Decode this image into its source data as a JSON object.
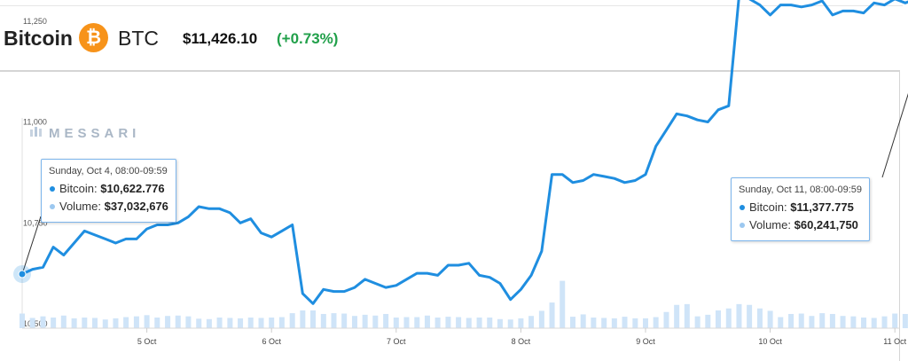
{
  "header": {
    "coin_name": "Bitcoin",
    "coin_logo_glyph": "₿",
    "coin_logo_color": "#f7931a",
    "coin_symbol": "BTC",
    "price": "$11,426.10",
    "change": "(+0.73%)",
    "change_color": "#21a04a"
  },
  "watermark": "MESSARI",
  "tooltip_left": {
    "date": "Sunday, Oct 4, 08:00-09:59",
    "price_label": "Bitcoin:",
    "price_value": "$10,622.776",
    "volume_label": "Volume:",
    "volume_value": "$37,032,676"
  },
  "tooltip_right": {
    "date": "Sunday, Oct 11, 08:00-09:59",
    "price_label": "Bitcoin:",
    "price_value": "$11,377.775",
    "volume_label": "Volume:",
    "volume_value": "$60,241,750"
  },
  "chart_data": {
    "type": "line",
    "title": "",
    "xlabel": "",
    "ylabel": "",
    "x_start_day": 4,
    "x_ticks": [
      "5 Oct",
      "6 Oct",
      "7 Oct",
      "8 Oct",
      "9 Oct",
      "10 Oct",
      "11 Oct"
    ],
    "y_ticks": [
      "10,500",
      "10,750",
      "11,000",
      "11,250"
    ],
    "ylim": [
      10500,
      11350
    ],
    "grid": false,
    "line_color": "#1f8ee0",
    "volume_color": "#cfe4f8",
    "series": [
      {
        "name": "Bitcoin",
        "x_days": [
          4.0,
          4.083,
          4.167,
          4.25,
          4.333,
          4.417,
          4.5,
          4.583,
          4.667,
          4.75,
          4.833,
          4.917,
          5.0,
          5.083,
          5.167,
          5.25,
          5.333,
          5.417,
          5.5,
          5.583,
          5.667,
          5.75,
          5.833,
          5.917,
          6.0,
          6.083,
          6.167,
          6.25,
          6.333,
          6.417,
          6.5,
          6.583,
          6.667,
          6.75,
          6.833,
          6.917,
          7.0,
          7.083,
          7.167,
          7.25,
          7.333,
          7.417,
          7.5,
          7.583,
          7.667,
          7.75,
          7.833,
          7.917,
          8.0,
          8.083,
          8.167,
          8.25,
          8.333,
          8.417,
          8.5,
          8.583,
          8.667,
          8.75,
          8.833,
          8.917,
          9.0,
          9.083,
          9.167,
          9.25,
          9.333,
          9.417,
          9.5,
          9.583,
          9.667,
          9.75,
          9.833,
          9.917,
          10.0,
          10.083,
          10.167,
          10.25,
          10.333,
          10.417,
          10.5,
          10.583,
          10.667,
          10.75,
          10.833,
          10.917,
          11.0,
          11.083,
          11.167,
          11.25,
          11.333,
          11.417
        ],
        "values": [
          10623,
          10635,
          10640,
          10690,
          10670,
          10700,
          10730,
          10720,
          10710,
          10700,
          10710,
          10710,
          10735,
          10745,
          10745,
          10750,
          10765,
          10790,
          10785,
          10785,
          10775,
          10750,
          10760,
          10725,
          10715,
          10730,
          10745,
          10575,
          10550,
          10585,
          10580,
          10580,
          10590,
          10610,
          10600,
          10590,
          10595,
          10610,
          10625,
          10625,
          10620,
          10645,
          10645,
          10650,
          10620,
          10615,
          10600,
          10560,
          10585,
          10620,
          10680,
          10870,
          10870,
          10850,
          10855,
          10870,
          10865,
          10860,
          10850,
          10855,
          10870,
          10940,
          10980,
          11020,
          11015,
          11005,
          11000,
          11030,
          11040,
          11310,
          11305,
          11290,
          11265,
          11290,
          11290,
          11285,
          11290,
          11300,
          11265,
          11275,
          11275,
          11270,
          11295,
          11290,
          11305,
          11295,
          11305,
          11300,
          11310,
          11378
        ]
      },
      {
        "name": "Volume",
        "x_days": [
          4.0,
          4.083,
          4.167,
          4.25,
          4.333,
          4.417,
          4.5,
          4.583,
          4.667,
          4.75,
          4.833,
          4.917,
          5.0,
          5.083,
          5.167,
          5.25,
          5.333,
          5.417,
          5.5,
          5.583,
          5.667,
          5.75,
          5.833,
          5.917,
          6.0,
          6.083,
          6.167,
          6.25,
          6.333,
          6.417,
          6.5,
          6.583,
          6.667,
          6.75,
          6.833,
          6.917,
          7.0,
          7.083,
          7.167,
          7.25,
          7.333,
          7.417,
          7.5,
          7.583,
          7.667,
          7.75,
          7.833,
          7.917,
          8.0,
          8.083,
          8.167,
          8.25,
          8.333,
          8.417,
          8.5,
          8.583,
          8.667,
          8.75,
          8.833,
          8.917,
          9.0,
          9.083,
          9.167,
          9.25,
          9.333,
          9.417,
          9.5,
          9.583,
          9.667,
          9.75,
          9.833,
          9.917,
          10.0,
          10.083,
          10.167,
          10.25,
          10.333,
          10.417,
          10.5,
          10.583,
          10.667,
          10.75,
          10.833,
          10.917,
          11.0,
          11.083,
          11.167,
          11.25,
          11.333,
          11.417
        ],
        "values": [
          37,
          26,
          30,
          27,
          32,
          25,
          27,
          26,
          22,
          25,
          28,
          30,
          33,
          27,
          31,
          32,
          30,
          24,
          23,
          27,
          26,
          25,
          27,
          26,
          27,
          28,
          38,
          45,
          45,
          36,
          38,
          37,
          31,
          34,
          32,
          36,
          27,
          28,
          28,
          32,
          27,
          29,
          28,
          26,
          27,
          27,
          23,
          22,
          25,
          31,
          44,
          65,
          120,
          29,
          35,
          27,
          26,
          25,
          29,
          25,
          25,
          28,
          41,
          59,
          61,
          30,
          34,
          45,
          50,
          61,
          59,
          50,
          44,
          28,
          36,
          37,
          31,
          38,
          36,
          31,
          30,
          27,
          26,
          30,
          37,
          36,
          31,
          35,
          33,
          60
        ]
      }
    ]
  }
}
